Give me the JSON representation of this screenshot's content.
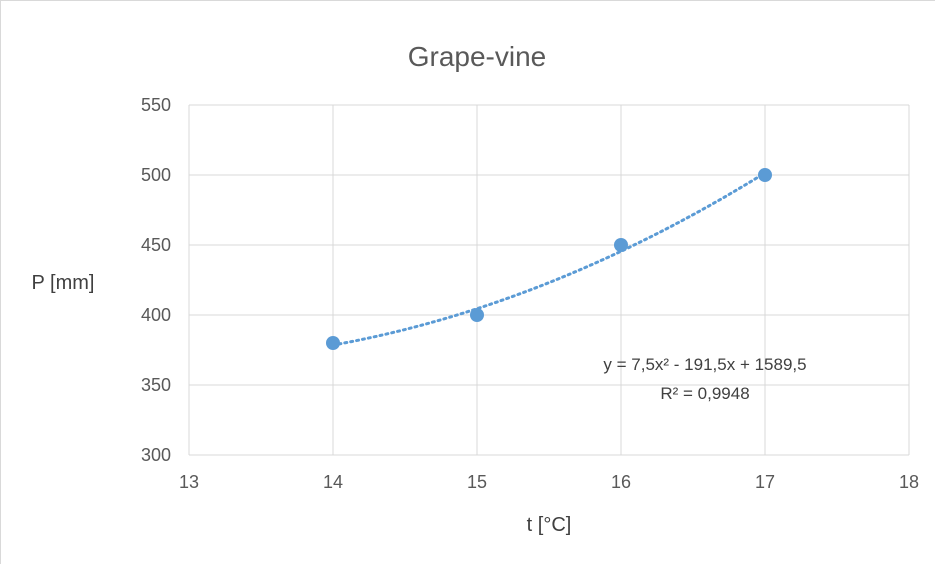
{
  "chart_data": {
    "type": "scatter",
    "title": "Grape-vine",
    "xlabel": "t [°C]",
    "ylabel": "P [mm]",
    "xlim": [
      13,
      18
    ],
    "ylim": [
      300,
      550
    ],
    "xticks": [
      13,
      14,
      15,
      16,
      17,
      18
    ],
    "yticks": [
      300,
      350,
      400,
      450,
      500,
      550
    ],
    "grid": true,
    "series": [
      {
        "x": [
          14,
          15,
          16,
          17
        ],
        "y": [
          380,
          400,
          450,
          500
        ],
        "color": "#5b9bd5"
      }
    ],
    "trendline": {
      "type": "polynomial",
      "order": 2,
      "coefficients": [
        7.5,
        -191.5,
        1589.5
      ],
      "x_range": [
        14,
        17
      ],
      "style": "dotted",
      "color": "#5b9bd5",
      "equation": "y = 7,5x² - 191,5x + 1589,5",
      "r_squared": "R² = 0,9948"
    }
  }
}
